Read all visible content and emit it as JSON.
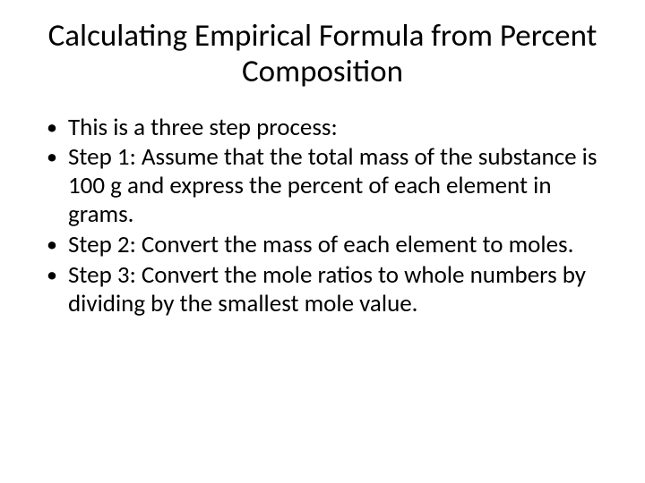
{
  "slide": {
    "title": "Calculating Empirical Formula from Percent Composition",
    "bullets": [
      "This is a three step process:",
      "Step 1: Assume that the total mass of the substance is 100 g and express the percent of each element in grams.",
      "Step 2: Convert the mass of each element to moles.",
      "Step 3: Convert the mole ratios to whole numbers by dividing by the smallest mole value."
    ],
    "title_fontsize": 35,
    "body_fontsize": 27,
    "text_color": "#000000",
    "background_color": "#ffffff",
    "font_family": "Calibri"
  }
}
